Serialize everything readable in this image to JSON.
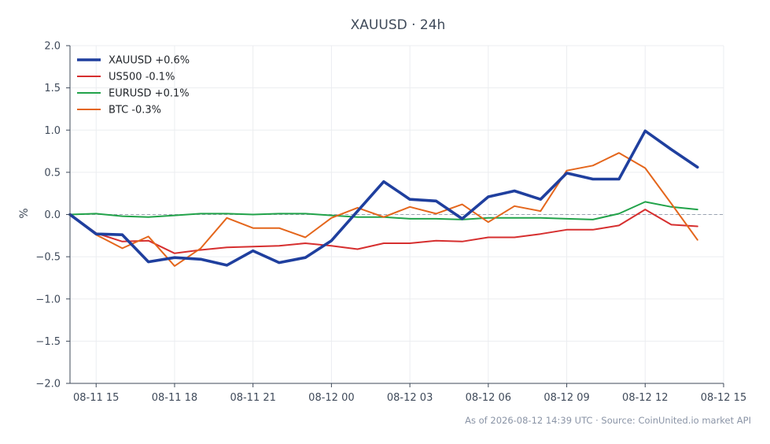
{
  "chart_data": {
    "type": "line",
    "title": "XAUUSD · 24h",
    "ylabel": "%",
    "ylim": [
      -2.0,
      2.0
    ],
    "yticks": [
      "2.0",
      "1.5",
      "1.0",
      "0.5",
      "0.0",
      "−0.5",
      "−1.0",
      "−1.5",
      "−2.0"
    ],
    "ytick_values": [
      2.0,
      1.5,
      1.0,
      0.5,
      0.0,
      -0.5,
      -1.0,
      -1.5,
      -2.0
    ],
    "xlim": [
      "08-11 14:00",
      "08-12 15:00"
    ],
    "xticks": [
      "08-11 15",
      "08-11 18",
      "08-11 21",
      "08-12 00",
      "08-12 03",
      "08-12 06",
      "08-12 09",
      "08-12 12",
      "08-12 15"
    ],
    "xtick_positions": [
      "08-11 15:00",
      "08-11 18:00",
      "08-11 21:00",
      "08-12 00:00",
      "08-12 03:00",
      "08-12 06:00",
      "08-12 09:00",
      "08-12 12:00",
      "08-12 15:00"
    ],
    "x": [
      "08-11 14:00",
      "08-11 15:00",
      "08-11 16:00",
      "08-11 17:00",
      "08-11 18:00",
      "08-11 19:00",
      "08-11 20:00",
      "08-11 21:00",
      "08-11 22:00",
      "08-11 23:00",
      "08-12 00:00",
      "08-12 01:00",
      "08-12 02:00",
      "08-12 03:00",
      "08-12 04:00",
      "08-12 05:00",
      "08-12 06:00",
      "08-12 07:00",
      "08-12 08:00",
      "08-12 09:00",
      "08-12 10:00",
      "08-12 11:00",
      "08-12 12:00",
      "08-12 13:00",
      "08-12 14:00"
    ],
    "grid": true,
    "zero_line": true,
    "legend": "top-left",
    "series": [
      {
        "name": "XAUUSD +0.6%",
        "color": "#1f3f9e",
        "width": "bold",
        "values": [
          0.0,
          -0.23,
          -0.24,
          -0.56,
          -0.51,
          -0.53,
          -0.6,
          -0.43,
          -0.57,
          -0.51,
          -0.31,
          0.04,
          0.39,
          0.18,
          0.16,
          -0.05,
          0.21,
          0.28,
          0.18,
          0.49,
          0.42,
          0.42,
          0.99,
          0.77,
          0.56
        ]
      },
      {
        "name": "US500 -0.1%",
        "color": "#d62f2f",
        "width": "normal",
        "values": [
          0.0,
          -0.22,
          -0.32,
          -0.31,
          -0.46,
          -0.42,
          -0.39,
          -0.38,
          -0.37,
          -0.34,
          -0.37,
          -0.41,
          -0.34,
          -0.34,
          -0.31,
          -0.32,
          -0.27,
          -0.27,
          -0.23,
          -0.18,
          -0.18,
          -0.13,
          0.06,
          -0.12,
          -0.14
        ]
      },
      {
        "name": "EURUSD +0.1%",
        "color": "#22a34a",
        "width": "normal",
        "values": [
          0.0,
          0.01,
          -0.02,
          -0.03,
          -0.01,
          0.01,
          0.01,
          0.0,
          0.01,
          0.01,
          -0.01,
          -0.03,
          -0.03,
          -0.05,
          -0.05,
          -0.06,
          -0.04,
          -0.04,
          -0.04,
          -0.05,
          -0.06,
          0.01,
          0.15,
          0.09,
          0.06
        ]
      },
      {
        "name": "BTC -0.3%",
        "color": "#e4661c",
        "width": "normal",
        "values": [
          0.0,
          -0.24,
          -0.4,
          -0.26,
          -0.61,
          -0.4,
          -0.04,
          -0.16,
          -0.16,
          -0.27,
          -0.04,
          0.08,
          -0.03,
          0.09,
          0.01,
          0.12,
          -0.09,
          0.1,
          0.04,
          0.52,
          0.58,
          0.73,
          0.55,
          0.13,
          -0.3
        ]
      }
    ],
    "footnote": "As of 2026-08-12 14:39 UTC · Source: CoinUnited.io market API"
  }
}
